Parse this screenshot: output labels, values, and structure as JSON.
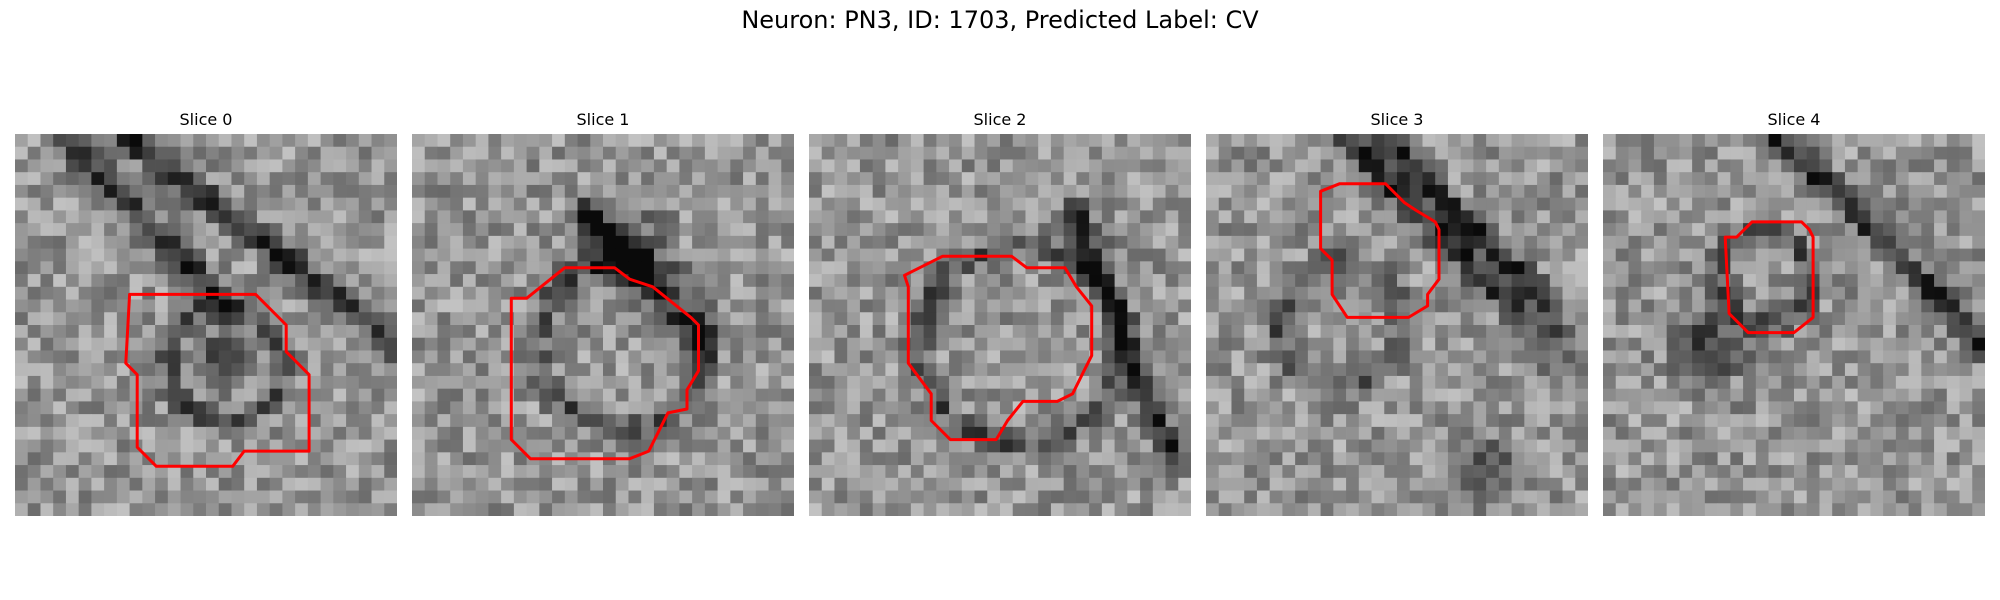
{
  "figure": {
    "title": "Neuron: PN3, ID: 1703, Predicted Label: CV"
  },
  "panels": [
    {
      "title": "Slice 0"
    },
    {
      "title": "Slice 1"
    },
    {
      "title": "Slice 2"
    },
    {
      "title": "Slice 3"
    },
    {
      "title": "Slice 4"
    }
  ],
  "colors": {
    "contour": "#ff0000",
    "background": "#ffffff"
  }
}
